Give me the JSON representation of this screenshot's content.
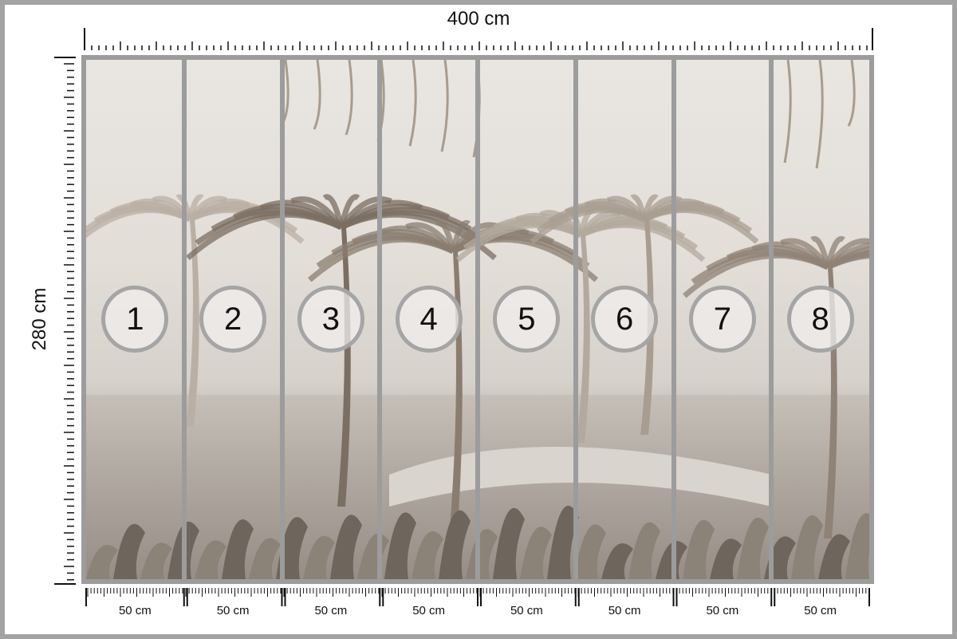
{
  "dimensions": {
    "width": "400 cm",
    "height": "280 cm"
  },
  "panels": [
    {
      "number": "1",
      "width": "50 cm"
    },
    {
      "number": "2",
      "width": "50 cm"
    },
    {
      "number": "3",
      "width": "50 cm"
    },
    {
      "number": "4",
      "width": "50 cm"
    },
    {
      "number": "5",
      "width": "50 cm"
    },
    {
      "number": "6",
      "width": "50 cm"
    },
    {
      "number": "7",
      "width": "50 cm"
    },
    {
      "number": "8",
      "width": "50 cm"
    }
  ],
  "colors": {
    "frame": "#a3a3a3",
    "panel_divider": "#9c9c9c",
    "ink": "#111111"
  }
}
